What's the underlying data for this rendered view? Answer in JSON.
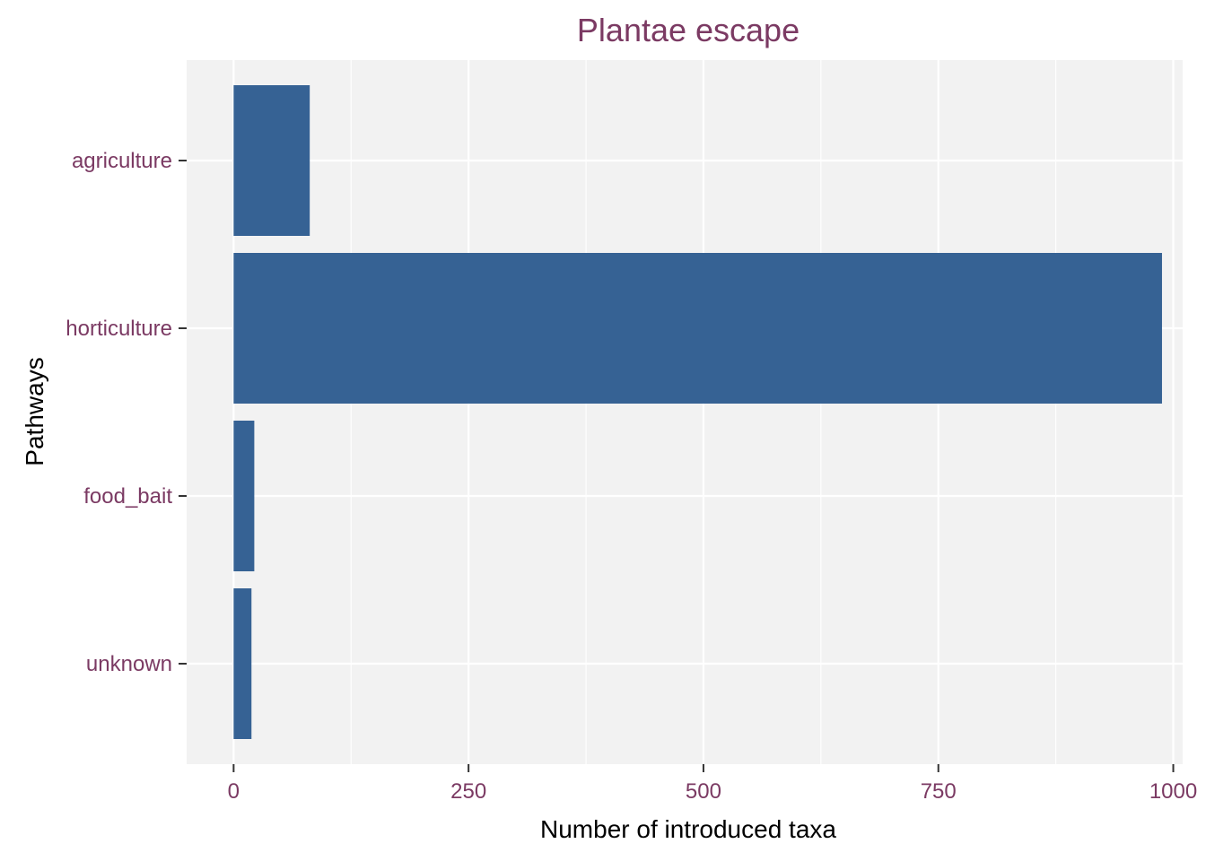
{
  "chart_data": {
    "type": "bar",
    "orientation": "horizontal",
    "title": "Plantae escape",
    "xlabel": "Number of introduced taxa",
    "ylabel": "Pathways",
    "categories": [
      "agriculture",
      "horticulture",
      "food_bait",
      "unknown"
    ],
    "values": [
      81,
      988,
      22,
      19
    ],
    "xlim": [
      -50,
      1010
    ],
    "xticks": [
      0,
      250,
      500,
      750,
      1000
    ],
    "xtick_labels": [
      "0",
      "250",
      "500",
      "750",
      "1000"
    ],
    "grid": true,
    "legend": "none"
  },
  "colors": {
    "bar": "#366294",
    "panel_background": "#f2f2f2",
    "grid": "#ffffff",
    "text_accent": "#7b3a63",
    "axis_title": "#000000"
  }
}
